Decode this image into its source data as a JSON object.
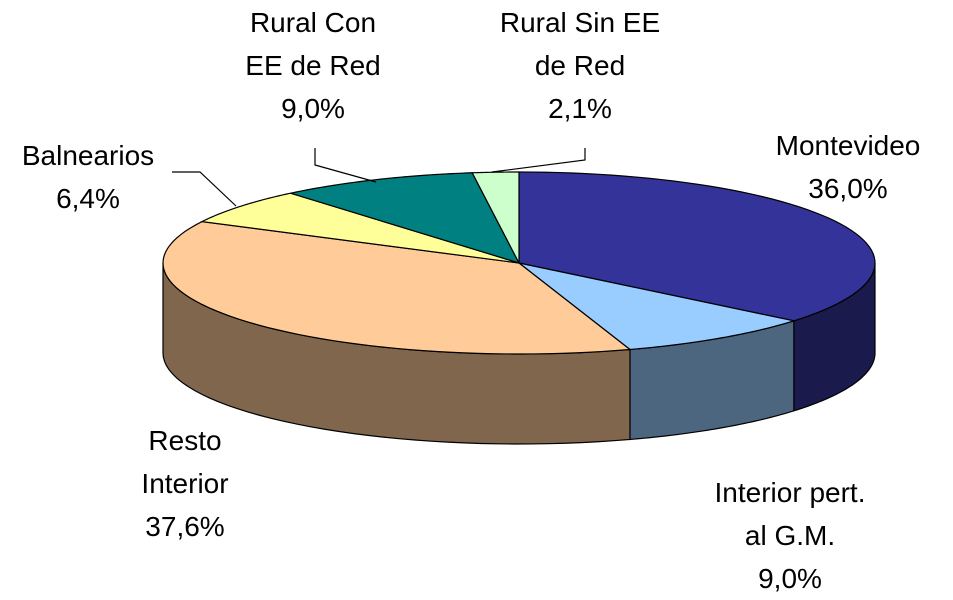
{
  "chart_data": {
    "type": "pie3d",
    "categories": [
      "Montevideo",
      "Interior pert.\nal G.M.",
      "Resto\nInterior",
      "Balnearios",
      "Rural Con\nEE de Red",
      "Rural Sin EE\nde Red"
    ],
    "values": [
      36.0,
      9.0,
      37.6,
      6.4,
      9.0,
      2.1
    ],
    "value_labels": [
      "36,0%",
      "9,0%",
      "37,6%",
      "6,4%",
      "9,0%",
      "2,1%"
    ],
    "colors": [
      "#333399",
      "#99ccff",
      "#ffcc99",
      "#ffff99",
      "#008080",
      "#ccffcc"
    ]
  }
}
